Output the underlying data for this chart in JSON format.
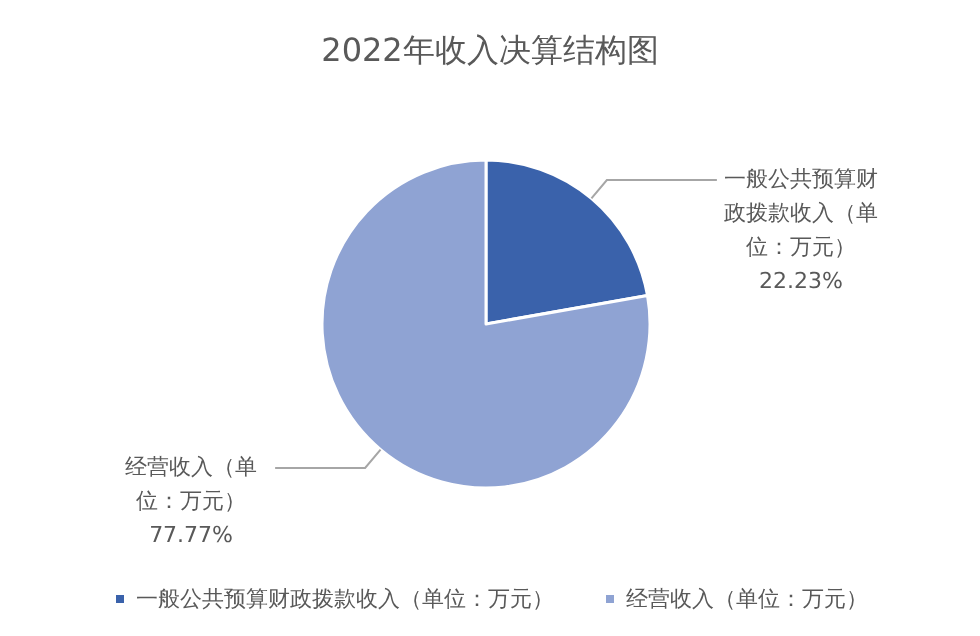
{
  "chart_data": {
    "type": "pie",
    "title": "2022年收入决算结构图",
    "categories": [
      "一般公共预算财政拨款收入（单位：万元）",
      "经营收入（单位：万元）"
    ],
    "values": [
      22.23,
      77.77
    ],
    "colors": [
      "#3a62ab",
      "#8fa3d3"
    ],
    "value_labels": [
      "22.23%",
      "77.77%"
    ],
    "legend": "bottom"
  }
}
